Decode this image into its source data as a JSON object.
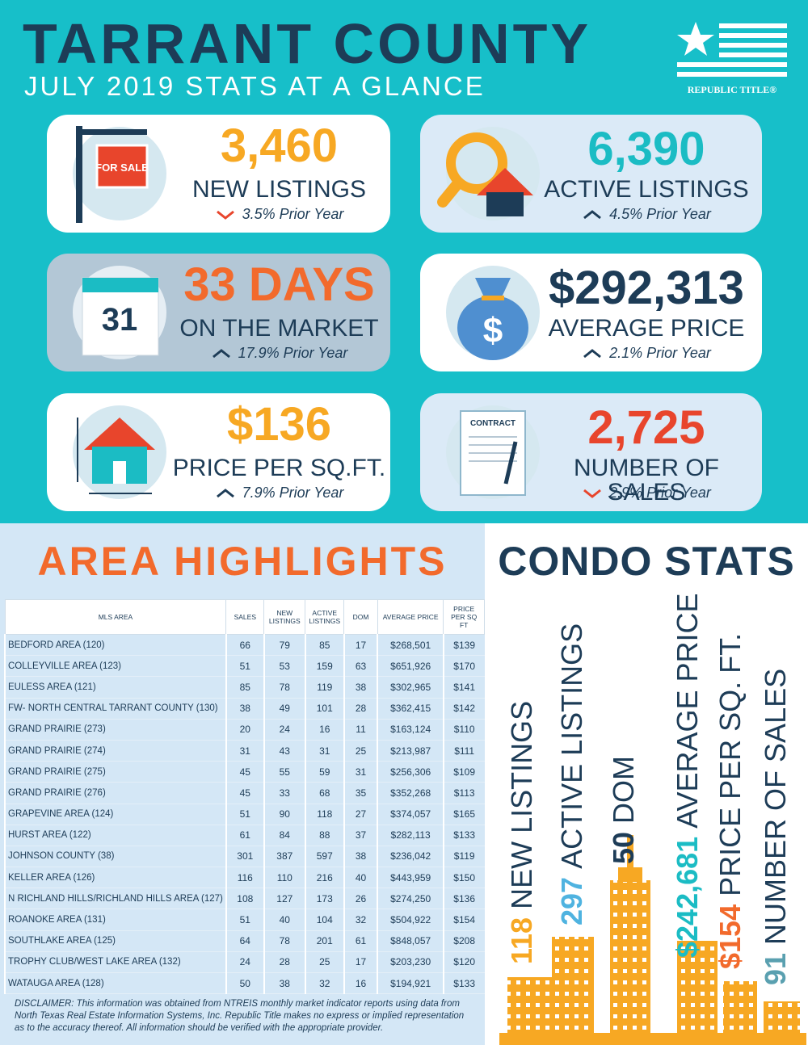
{
  "header": {
    "title": "TARRANT COUNTY",
    "subtitle": "JULY 2019 STATS AT A GLANCE",
    "logo": "REPUBLIC TITLE®"
  },
  "stats": [
    {
      "value": "3,460",
      "label": "NEW LISTINGS",
      "change": "3.5% Prior Year",
      "direction": "down",
      "color": "#f7a823",
      "background": "#ffffff",
      "icon_text": "FOR SALE"
    },
    {
      "value": "6,390",
      "label": "ACTIVE LISTINGS",
      "change": "4.5% Prior Year",
      "direction": "up",
      "color": "#1bbcc4",
      "background": "#dbeaf7"
    },
    {
      "value": "33 DAYS",
      "label": "ON THE MARKET",
      "change": "17.9% Prior Year",
      "direction": "up",
      "color": "#f26a2c",
      "background": "#b3c7d6",
      "icon_text": "31"
    },
    {
      "value": "$292,313",
      "label": "AVERAGE PRICE",
      "change": "2.1% Prior Year",
      "direction": "up",
      "color": "#1d3c57",
      "background": "#ffffff",
      "icon_text": "$"
    },
    {
      "value": "$136",
      "label": "PRICE PER SQ.FT.",
      "change": "7.9% Prior Year",
      "direction": "up",
      "color": "#f7a823",
      "background": "#ffffff"
    },
    {
      "value": "2,725",
      "label": "NUMBER OF SALES",
      "change": "2.9% Prior Year",
      "direction": "down",
      "color": "#e8452c",
      "background": "#dbeaf7",
      "icon_text": "CONTRACT"
    }
  ],
  "area_highlights": {
    "title": "AREA HIGHLIGHTS",
    "headers": [
      "MLS AREA",
      "SALES",
      "NEW LISTINGS",
      "ACTIVE LISTINGS",
      "DOM",
      "AVERAGE PRICE",
      "PRICE PER SQ FT"
    ],
    "rows": [
      [
        "BEDFORD AREA (120)",
        "66",
        "79",
        "85",
        "17",
        "$268,501",
        "$139"
      ],
      [
        "COLLEYVILLE AREA (123)",
        "51",
        "53",
        "159",
        "63",
        "$651,926",
        "$170"
      ],
      [
        "EULESS AREA (121)",
        "85",
        "78",
        "119",
        "38",
        "$302,965",
        "$141"
      ],
      [
        "FW- NORTH CENTRAL TARRANT COUNTY (130)",
        "38",
        "49",
        "101",
        "28",
        "$362,415",
        "$142"
      ],
      [
        "GRAND PRAIRIE (273)",
        "20",
        "24",
        "16",
        "11",
        "$163,124",
        "$110"
      ],
      [
        "GRAND PRAIRIE (274)",
        "31",
        "43",
        "31",
        "25",
        "$213,987",
        "$111"
      ],
      [
        "GRAND PRAIRIE (275)",
        "45",
        "55",
        "59",
        "31",
        "$256,306",
        "$109"
      ],
      [
        "GRAND PRAIRIE (276)",
        "45",
        "33",
        "68",
        "35",
        "$352,268",
        "$113"
      ],
      [
        "GRAPEVINE AREA (124)",
        "51",
        "90",
        "118",
        "27",
        "$374,057",
        "$165"
      ],
      [
        "HURST AREA (122)",
        "61",
        "84",
        "88",
        "37",
        "$282,113",
        "$133"
      ],
      [
        "JOHNSON COUNTY (38)",
        "301",
        "387",
        "597",
        "38",
        "$236,042",
        "$119"
      ],
      [
        "KELLER AREA (126)",
        "116",
        "110",
        "216",
        "40",
        "$443,959",
        "$150"
      ],
      [
        "N RICHLAND HILLS/RICHLAND HILLS AREA (127)",
        "108",
        "127",
        "173",
        "26",
        "$274,250",
        "$136"
      ],
      [
        "ROANOKE AREA (131)",
        "51",
        "40",
        "104",
        "32",
        "$504,922",
        "$154"
      ],
      [
        "SOUTHLAKE AREA (125)",
        "64",
        "78",
        "201",
        "61",
        "$848,057",
        "$208"
      ],
      [
        "TROPHY CLUB/WEST LAKE AREA (132)",
        "24",
        "28",
        "25",
        "17",
        "$203,230",
        "$120"
      ],
      [
        "WATAUGA AREA (128)",
        "50",
        "38",
        "32",
        "16",
        "$194,921",
        "$133"
      ]
    ],
    "disclaimer": "DISCLAIMER: This information was obtained from NTREIS monthly market indicator reports using data from North Texas Real Estate Information Systems, Inc.  Republic Title makes no express or implied representation as to the accuracy thereof.  All information should be verified with the appropriate provider."
  },
  "condo_stats": {
    "title": "CONDO STATS",
    "items": [
      {
        "value": "118",
        "label": "NEW LISTINGS",
        "color": "#f7a823"
      },
      {
        "value": "297",
        "label": "ACTIVE LISTINGS",
        "color": "#4fb3e0"
      },
      {
        "value": "50",
        "label": "DOM",
        "color": "#1d3c57"
      },
      {
        "value": "$242,681",
        "label": "AVERAGE PRICE",
        "color": "#1bbcc4"
      },
      {
        "value": "$154",
        "label": "PRICE PER SQ. FT.",
        "color": "#f26a2c"
      },
      {
        "value": "91",
        "label": "NUMBER OF SALES",
        "color": "#5aa0b0"
      }
    ]
  }
}
